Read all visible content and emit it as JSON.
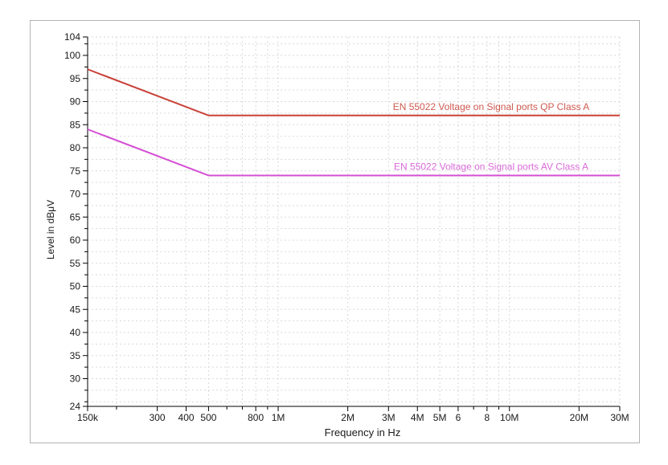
{
  "page": {
    "background": "#ffffff"
  },
  "panel": {
    "border_color": "#b3b3b3",
    "background": "#ffffff"
  },
  "chart_data": {
    "type": "line",
    "title": "",
    "xlabel": "Frequency in Hz",
    "ylabel": "Level in dBμV",
    "x_scale": "log",
    "xlim": [
      150000,
      30000000
    ],
    "ylim": [
      24,
      104
    ],
    "grid": true,
    "grid_color": "#d9d9d9",
    "axis_color": "#000000",
    "tick_label_color": "#1a1a1a",
    "x_ticks": [
      {
        "v": 150000,
        "label": "150k"
      },
      {
        "v": 200000
      },
      {
        "v": 300000,
        "label": "300"
      },
      {
        "v": 400000,
        "label": "400"
      },
      {
        "v": 500000,
        "label": "500"
      },
      {
        "v": 600000
      },
      {
        "v": 700000
      },
      {
        "v": 800000,
        "label": "800"
      },
      {
        "v": 900000
      },
      {
        "v": 1000000,
        "label": "1M"
      },
      {
        "v": 2000000,
        "label": "2M"
      },
      {
        "v": 3000000,
        "label": "3M"
      },
      {
        "v": 4000000,
        "label": "4M"
      },
      {
        "v": 5000000,
        "label": "5M"
      },
      {
        "v": 6000000,
        "label": "6"
      },
      {
        "v": 7000000
      },
      {
        "v": 8000000,
        "label": "8"
      },
      {
        "v": 9000000
      },
      {
        "v": 10000000,
        "label": "10M"
      },
      {
        "v": 20000000,
        "label": "20M"
      },
      {
        "v": 30000000,
        "label": "30M"
      }
    ],
    "y_ticks": [
      {
        "v": 104,
        "label": "104"
      },
      {
        "v": 102.5
      },
      {
        "v": 100,
        "label": "100"
      },
      {
        "v": 97.5
      },
      {
        "v": 95,
        "label": "95"
      },
      {
        "v": 92.5
      },
      {
        "v": 90,
        "label": "90"
      },
      {
        "v": 87.5
      },
      {
        "v": 85,
        "label": "85"
      },
      {
        "v": 82.5
      },
      {
        "v": 80,
        "label": "80"
      },
      {
        "v": 77.5
      },
      {
        "v": 75,
        "label": "75"
      },
      {
        "v": 72.5
      },
      {
        "v": 70,
        "label": "70"
      },
      {
        "v": 67.5
      },
      {
        "v": 65,
        "label": "65"
      },
      {
        "v": 62.5
      },
      {
        "v": 60,
        "label": "60"
      },
      {
        "v": 57.5
      },
      {
        "v": 55,
        "label": "55"
      },
      {
        "v": 52.5
      },
      {
        "v": 50,
        "label": "50"
      },
      {
        "v": 47.5
      },
      {
        "v": 45,
        "label": "45"
      },
      {
        "v": 42.5
      },
      {
        "v": 40,
        "label": "40"
      },
      {
        "v": 37.5
      },
      {
        "v": 35,
        "label": "35"
      },
      {
        "v": 32.5
      },
      {
        "v": 30,
        "label": "30"
      },
      {
        "v": 27.5
      },
      {
        "v": 25
      },
      {
        "v": 24,
        "label": "24"
      }
    ],
    "series": [
      {
        "name": "EN 55022 Voltage on Signal ports QP Class A",
        "color": "#c94138",
        "label_color": "#cf5a50",
        "points": [
          [
            150000,
            97
          ],
          [
            500000,
            87
          ],
          [
            30000000,
            87
          ]
        ]
      },
      {
        "name": "EN 55022 Voltage on Signal ports AV Class A",
        "color": "#d44fd4",
        "label_color": "#da6ada",
        "points": [
          [
            150000,
            84
          ],
          [
            500000,
            74
          ],
          [
            30000000,
            74
          ]
        ]
      }
    ],
    "legend_position": "inline-above-lines"
  }
}
